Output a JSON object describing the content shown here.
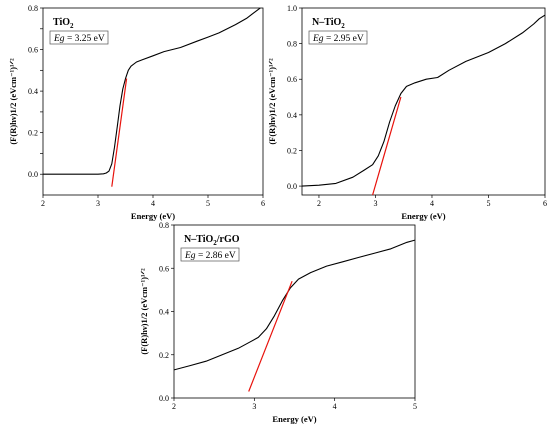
{
  "chart_data": [
    {
      "type": "line",
      "title": "TiO2",
      "title_main": "TiO",
      "title_sub": "2",
      "title_suffix": "",
      "eg_var": "Eg",
      "eg_value": " = 3.25 eV",
      "xlabel": "Energy (eV)",
      "ylabel": "(F(R)hν)1/2 (eVcm⁻¹)¹ᐟ²",
      "xlim": [
        2,
        6
      ],
      "ylim": [
        -0.1,
        0.8
      ],
      "xticks": [
        2,
        3,
        4,
        5,
        6
      ],
      "yticks": [
        0.0,
        0.1,
        0.2,
        0.3,
        0.4,
        0.5,
        0.6,
        0.7,
        0.8
      ],
      "ytick_labels": [
        "0.0",
        "",
        "0.2",
        "",
        "0.4",
        "",
        "0.6",
        "",
        "0.8"
      ],
      "series": [
        {
          "color": "#000000",
          "x": [
            2.0,
            2.5,
            3.0,
            3.1,
            3.15,
            3.2,
            3.25,
            3.3,
            3.35,
            3.4,
            3.45,
            3.5,
            3.55,
            3.6,
            3.7,
            3.8,
            4.0,
            4.2,
            4.5,
            4.8,
            5.0,
            5.2,
            5.5,
            5.7,
            5.8,
            5.9,
            6.0
          ],
          "y": [
            0.0,
            0.0,
            0.0,
            0.002,
            0.006,
            0.015,
            0.05,
            0.13,
            0.23,
            0.33,
            0.41,
            0.46,
            0.5,
            0.52,
            0.54,
            0.55,
            0.57,
            0.59,
            0.61,
            0.64,
            0.66,
            0.68,
            0.72,
            0.75,
            0.77,
            0.79,
            0.81
          ]
        },
        {
          "color": "#e8120c",
          "x": [
            3.25,
            3.52
          ],
          "y": [
            -0.06,
            0.46
          ]
        }
      ]
    },
    {
      "type": "line",
      "title": "N-TiO2",
      "title_main": "N–TiO",
      "title_sub": "2",
      "title_suffix": "",
      "eg_var": "Eg",
      "eg_value": " = 2.95 eV",
      "xlabel": "Energy (eV)",
      "ylabel": "(F(R)hν)1/2 (eVcm⁻¹)¹ᐟ²",
      "xlim": [
        1.7,
        6
      ],
      "ylim": [
        -0.05,
        1.0
      ],
      "xticks": [
        2,
        3,
        4,
        5,
        6
      ],
      "yticks": [
        0.0,
        0.2,
        0.4,
        0.6,
        0.8,
        1.0
      ],
      "ytick_labels": [
        "0.0",
        "0.2",
        "0.4",
        "0.6",
        "0.8",
        "1.0"
      ],
      "series": [
        {
          "color": "#000000",
          "x": [
            1.7,
            2.0,
            2.3,
            2.6,
            2.8,
            2.95,
            3.05,
            3.15,
            3.25,
            3.35,
            3.45,
            3.55,
            3.7,
            3.9,
            4.1,
            4.3,
            4.6,
            5.0,
            5.3,
            5.6,
            5.8,
            5.9,
            6.0
          ],
          "y": [
            0.0,
            0.005,
            0.015,
            0.05,
            0.09,
            0.12,
            0.17,
            0.25,
            0.36,
            0.45,
            0.52,
            0.56,
            0.58,
            0.6,
            0.61,
            0.65,
            0.7,
            0.75,
            0.8,
            0.86,
            0.91,
            0.94,
            0.96
          ]
        },
        {
          "color": "#e8120c",
          "x": [
            2.95,
            3.45
          ],
          "y": [
            -0.05,
            0.5
          ]
        }
      ]
    },
    {
      "type": "line",
      "title": "N-TiO2/rGO",
      "title_main": "N–TiO",
      "title_sub": "2",
      "title_suffix": "/rGO",
      "eg_var": "Eg",
      "eg_value": " = 2.86 eV",
      "xlabel": "Energy (eV)",
      "ylabel": "(F(R)hν)1/2 (eVcm⁻¹)¹ᐟ²",
      "xlim": [
        2,
        5
      ],
      "ylim": [
        0.0,
        0.8
      ],
      "xticks": [
        2,
        3,
        4,
        5
      ],
      "yticks": [
        0.0,
        0.2,
        0.4,
        0.6,
        0.8
      ],
      "ytick_labels": [
        "0.0",
        "0.2",
        "0.4",
        "0.6",
        "0.8"
      ],
      "series": [
        {
          "color": "#000000",
          "x": [
            2.0,
            2.2,
            2.4,
            2.6,
            2.8,
            2.95,
            3.05,
            3.15,
            3.25,
            3.35,
            3.45,
            3.55,
            3.7,
            3.9,
            4.1,
            4.3,
            4.5,
            4.7,
            4.9,
            5.0
          ],
          "y": [
            0.13,
            0.15,
            0.17,
            0.2,
            0.23,
            0.26,
            0.28,
            0.32,
            0.38,
            0.45,
            0.51,
            0.55,
            0.58,
            0.61,
            0.63,
            0.65,
            0.67,
            0.69,
            0.72,
            0.73
          ]
        },
        {
          "color": "#e8120c",
          "x": [
            2.93,
            3.47
          ],
          "y": [
            0.03,
            0.54
          ]
        }
      ]
    }
  ]
}
